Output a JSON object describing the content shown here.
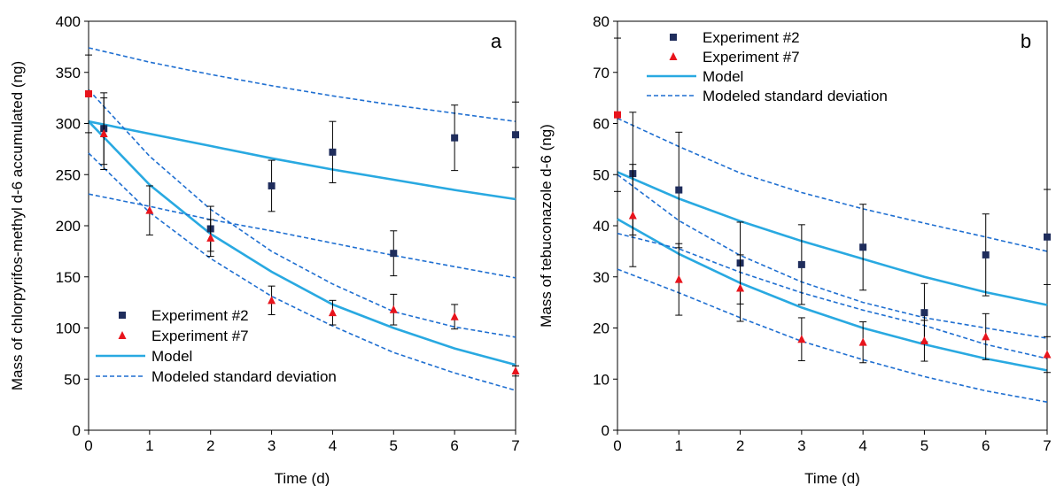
{
  "chart_data": [
    {
      "type": "scatter",
      "panel_label": "a",
      "xlabel": "Time (d)",
      "ylabel": "Mass of chlorpyrifos-methyl d-6 accumulated (ng)",
      "xlim": [
        0,
        7
      ],
      "ylim": [
        0,
        400
      ],
      "xticks": [
        0,
        1,
        2,
        3,
        4,
        5,
        6,
        7
      ],
      "yticks": [
        0,
        50,
        100,
        150,
        200,
        250,
        300,
        350,
        400
      ],
      "grid": false,
      "legend_position": "bottom-left",
      "series": [
        {
          "name": "Experiment #2",
          "kind": "points",
          "marker": "square",
          "color": "#1f2d5c",
          "x": [
            0.25,
            2,
            3,
            4,
            5,
            6,
            7
          ],
          "y": [
            295,
            197,
            239,
            272,
            173,
            286,
            289
          ],
          "err": [
            35,
            22,
            25,
            30,
            22,
            32,
            32
          ]
        },
        {
          "name": "Experiment #7",
          "kind": "points",
          "marker": "triangle",
          "color": "#e8141c",
          "x": [
            0.25,
            1,
            2,
            3,
            4,
            5,
            6,
            7
          ],
          "y": [
            290,
            215,
            188,
            127,
            115,
            118,
            111,
            58
          ],
          "err": [
            35,
            24,
            18,
            14,
            12,
            15,
            12,
            5
          ]
        },
        {
          "name": "",
          "kind": "points",
          "marker": "square",
          "color": "#e8141c",
          "x": [
            0
          ],
          "y": [
            329
          ],
          "err": [
            38
          ]
        },
        {
          "name": "Model",
          "kind": "line",
          "style": "solid",
          "color": "#29a9e1",
          "x": [
            0,
            1,
            2,
            3,
            4,
            5,
            6,
            7
          ],
          "y": [
            302,
            290,
            278,
            266,
            255,
            245,
            235,
            226
          ]
        },
        {
          "name": "Model",
          "kind": "line",
          "style": "solid",
          "color": "#29a9e1",
          "x": [
            0,
            1,
            2,
            3,
            4,
            5,
            6,
            7
          ],
          "y": [
            302,
            240,
            192,
            155,
            123,
            100,
            80,
            64
          ]
        },
        {
          "name": "Modeled standard deviation",
          "kind": "line",
          "style": "dashed",
          "color": "#1f6fd1",
          "x": [
            0,
            1,
            2,
            3,
            4,
            5,
            6,
            7
          ],
          "y": [
            374,
            360,
            348,
            337,
            327,
            318,
            310,
            302
          ]
        },
        {
          "name": "Modeled standard deviation",
          "kind": "line",
          "style": "dashed",
          "color": "#1f6fd1",
          "x": [
            0,
            1,
            2,
            3,
            4,
            5,
            6,
            7
          ],
          "y": [
            231,
            219,
            206,
            195,
            183,
            171,
            160,
            149
          ]
        },
        {
          "name": "Modeled standard deviation",
          "kind": "line",
          "style": "dashed",
          "color": "#1f6fd1",
          "x": [
            0,
            1,
            2,
            3,
            4,
            5,
            6,
            7
          ],
          "y": [
            333,
            268,
            216,
            175,
            143,
            116,
            101,
            91
          ]
        },
        {
          "name": "Modeled standard deviation",
          "kind": "line",
          "style": "dashed",
          "color": "#1f6fd1",
          "x": [
            0,
            1,
            2,
            3,
            4,
            5,
            6,
            7
          ],
          "y": [
            271,
            213,
            168,
            131,
            102,
            76,
            56,
            39
          ]
        }
      ]
    },
    {
      "type": "scatter",
      "panel_label": "b",
      "xlabel": "Time (d)",
      "ylabel": "Mass of tebuconazole d-6 (ng)",
      "xlim": [
        0,
        7
      ],
      "ylim": [
        0,
        80
      ],
      "xticks": [
        0,
        1,
        2,
        3,
        4,
        5,
        6,
        7
      ],
      "yticks": [
        0,
        10,
        20,
        30,
        40,
        50,
        60,
        70,
        80
      ],
      "grid": false,
      "legend_position": "top-center",
      "series": [
        {
          "name": "Experiment #2",
          "kind": "points",
          "marker": "square",
          "color": "#1f2d5c",
          "x": [
            0.25,
            1,
            2,
            3,
            4,
            5,
            6,
            7
          ],
          "y": [
            50.2,
            47,
            32.7,
            32.4,
            35.8,
            23,
            34.3,
            37.8
          ],
          "err": [
            12,
            11.3,
            8,
            7.8,
            8.4,
            5.7,
            8,
            9.3
          ]
        },
        {
          "name": "Experiment #7",
          "kind": "points",
          "marker": "triangle",
          "color": "#e8141c",
          "x": [
            0.25,
            1,
            2,
            3,
            4,
            5,
            6,
            7
          ],
          "y": [
            42,
            29.5,
            27.8,
            17.8,
            17.2,
            17.5,
            18.3,
            14.8
          ],
          "err": [
            10,
            7,
            6.5,
            4.2,
            4,
            4,
            4.5,
            3.5
          ]
        },
        {
          "name": "",
          "kind": "points",
          "marker": "square",
          "color": "#e8141c",
          "x": [
            0
          ],
          "y": [
            61.7
          ],
          "err": [
            15
          ]
        },
        {
          "name": "Model",
          "kind": "line",
          "style": "solid",
          "color": "#29a9e1",
          "x": [
            0,
            1,
            2,
            3,
            4,
            5,
            6,
            7
          ],
          "y": [
            50.5,
            45.3,
            40.9,
            37,
            33.5,
            30,
            27,
            24.5
          ]
        },
        {
          "name": "Model",
          "kind": "line",
          "style": "solid",
          "color": "#29a9e1",
          "x": [
            0,
            1,
            2,
            3,
            4,
            5,
            6,
            7
          ],
          "y": [
            41.3,
            34.5,
            28.8,
            24,
            20,
            16.8,
            14,
            11.7
          ]
        },
        {
          "name": "Modeled standard deviation",
          "kind": "line",
          "style": "dashed",
          "color": "#1f6fd1",
          "x": [
            0,
            1,
            2,
            3,
            4,
            5,
            6,
            7
          ],
          "y": [
            61,
            55.5,
            50.3,
            46.5,
            43.3,
            40.5,
            37.8,
            35
          ]
        },
        {
          "name": "Modeled standard deviation",
          "kind": "line",
          "style": "dashed",
          "color": "#1f6fd1",
          "x": [
            0,
            1,
            2,
            3,
            4,
            5,
            6,
            7
          ],
          "y": [
            50,
            41,
            34.2,
            29,
            25,
            22,
            20,
            18
          ]
        },
        {
          "name": "Modeled standard deviation",
          "kind": "line",
          "style": "dashed",
          "color": "#1f6fd1",
          "x": [
            0,
            1,
            2,
            3,
            4,
            5,
            6,
            7
          ],
          "y": [
            38.5,
            35.5,
            30.9,
            26.9,
            23.5,
            20.5,
            16.8,
            14
          ]
        },
        {
          "name": "Modeled standard deviation",
          "kind": "line",
          "style": "dashed",
          "color": "#1f6fd1",
          "x": [
            0,
            1,
            2,
            3,
            4,
            5,
            6,
            7
          ],
          "y": [
            31.5,
            26.9,
            22,
            17.4,
            13.8,
            10.5,
            7.7,
            5.5
          ]
        }
      ]
    }
  ],
  "legend": {
    "entries": [
      {
        "label": "Experiment #2",
        "marker": "square",
        "color": "#1f2d5c"
      },
      {
        "label": "Experiment #7",
        "marker": "triangle",
        "color": "#e8141c"
      },
      {
        "label": "Model",
        "marker": "solid-line",
        "color": "#29a9e1"
      },
      {
        "label": "Modeled standard deviation",
        "marker": "dashed-line",
        "color": "#1f6fd1"
      }
    ]
  }
}
